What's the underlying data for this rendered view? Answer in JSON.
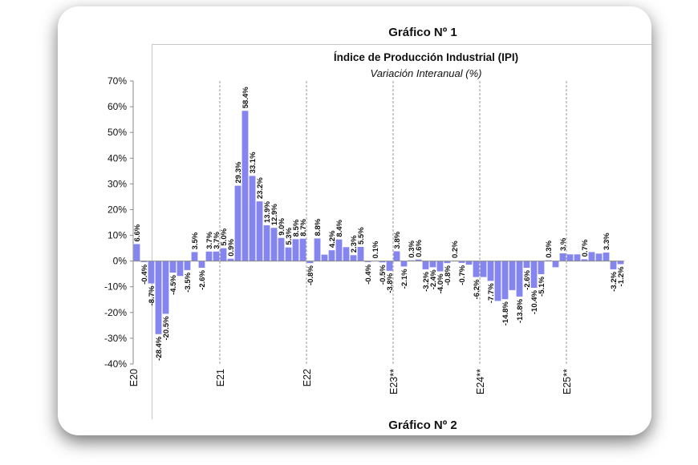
{
  "page": {
    "figure_title": "Gráfico Nº 1",
    "next_figure_title": "Gráfico Nº 2"
  },
  "chart_data": {
    "type": "bar",
    "title": "Índice de Producción Industrial (IPI)",
    "subtitle": "Variación Interanual (%)",
    "color": "#8585f0",
    "ylim": [
      -40,
      70
    ],
    "yticks": [
      "-40%",
      "-30%",
      "-20%",
      "-10%",
      "0%",
      "10%",
      "20%",
      "30%",
      "40%",
      "50%",
      "60%",
      "70%"
    ],
    "year_labels": [
      {
        "label": "E20",
        "index": 0
      },
      {
        "label": "E21",
        "index": 12
      },
      {
        "label": "E22",
        "index": 24
      },
      {
        "label": "E23**",
        "index": 36
      },
      {
        "label": "E24**",
        "index": 48
      },
      {
        "label": "E25**",
        "index": 60
      }
    ],
    "values": [
      6.6,
      -0.4,
      -8.7,
      -28.4,
      -20.5,
      -4.5,
      -5.8,
      -3.5,
      3.5,
      -2.6,
      3.7,
      3.7,
      5.0,
      0.9,
      29.3,
      58.4,
      33.1,
      23.2,
      13.9,
      12.9,
      9.0,
      5.3,
      8.5,
      8.7,
      -0.8,
      8.8,
      2.5,
      4.2,
      8.4,
      5.4,
      2.3,
      5.5,
      -0.4,
      0.1,
      -0.5,
      -3.8,
      3.8,
      -2.1,
      0.3,
      0.6,
      -3.2,
      -2.4,
      -4.0,
      -0.8,
      0.2,
      -0.7,
      -1.4,
      -6.2,
      -6.2,
      -7.7,
      -15.5,
      -14.8,
      -11.3,
      -13.8,
      -2.6,
      -10.4,
      -5.1,
      0.3,
      -2.4,
      3.0,
      2.6,
      2.6,
      0.7,
      3.5,
      2.9,
      3.3,
      -3.2,
      -1.2
    ],
    "data_labels": [
      "6.6%",
      "-0.4%",
      "-8.7%",
      "-28.4%",
      "-20.5%",
      "-4.5%",
      "-5.8%",
      "-3.5%",
      "3.5%",
      "-2.6%",
      "3.7%",
      "3.7%",
      "5.0%",
      "0.9%",
      "29.3%",
      "58.4%",
      "33.1%",
      "23.2%",
      "13.9%",
      "12.9%",
      "9.0%",
      "5.3%",
      "8.5%",
      "8.7%",
      "-0.8%",
      "8.8%",
      "2.5%",
      "4.2%",
      "8.4%",
      "5.4%",
      "2.3%",
      "5.5%",
      "-0.4%",
      "0.1%",
      "-0.5%",
      "-3.8%",
      "3.8%",
      "-2.1%",
      "0.3%",
      "0.6%",
      "-3.2%",
      "-2.4%",
      "-4.0%",
      "-0.8%",
      "0.2%",
      "-0.7%",
      "-1.4%",
      "-6.2%",
      "-6.2%",
      "-7.7%",
      "-15.5%",
      "-14.8%",
      "-11.3%",
      "-13.8%",
      "-2.6%",
      "-10.4%",
      "-5.1%",
      "0.3%",
      "-2.4%",
      "3.%",
      "2.6%",
      "2.6%",
      "0.7%",
      "3.5%",
      "2.9%",
      "3.3%",
      "-3.2%",
      "-1.2%"
    ],
    "hidden_label_indices": [
      6,
      26,
      29,
      46,
      48,
      50,
      52,
      58,
      60,
      61,
      63,
      64
    ],
    "grid": false
  }
}
